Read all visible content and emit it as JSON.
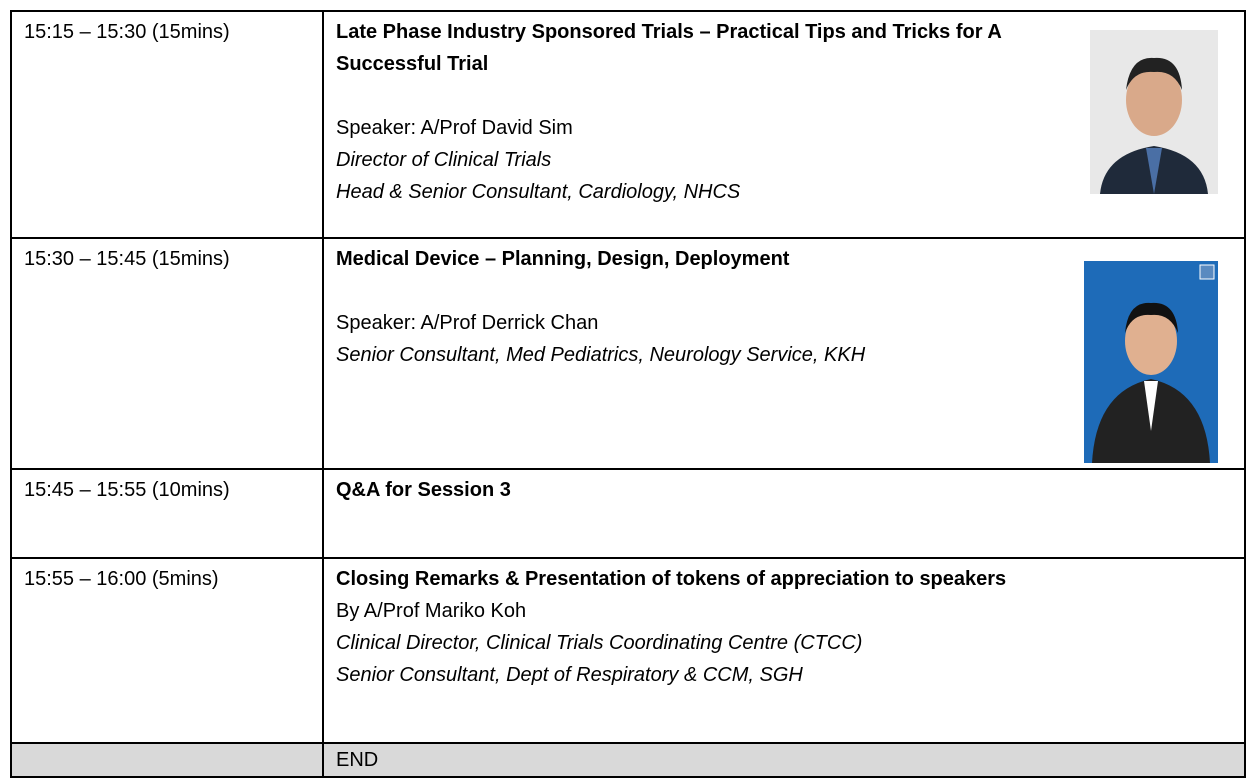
{
  "table": {
    "rows": [
      {
        "time": "15:15 – 15:30 (15mins)",
        "title": "Late Phase Industry Sponsored Trials – Practical Tips and Tricks for A Successful Trial",
        "speaker": "Speaker: A/Prof David Sim",
        "roles": [
          "Director of Clinical Trials",
          "Head & Senior Consultant, Cardiology, NHCS"
        ]
      },
      {
        "time": "15:30 – 15:45 (15mins)",
        "title": "Medical Device – Planning, Design, Deployment",
        "speaker": "Speaker: A/Prof Derrick Chan",
        "roles": [
          "Senior Consultant, Med Pediatrics, Neurology Service, KKH"
        ]
      },
      {
        "time": "15:45 – 15:55 (10mins)",
        "title": "Q&A for Session 3"
      },
      {
        "time": "15:55 – 16:00 (5mins)",
        "title": "Closing Remarks & Presentation of tokens of appreciation to speakers",
        "speaker": "By A/Prof Mariko Koh",
        "roles": [
          "Clinical Director, Clinical Trials Coordinating Centre (CTCC)",
          "Senior Consultant, Dept of Respiratory & CCM, SGH"
        ]
      },
      {
        "title": "END"
      }
    ]
  }
}
